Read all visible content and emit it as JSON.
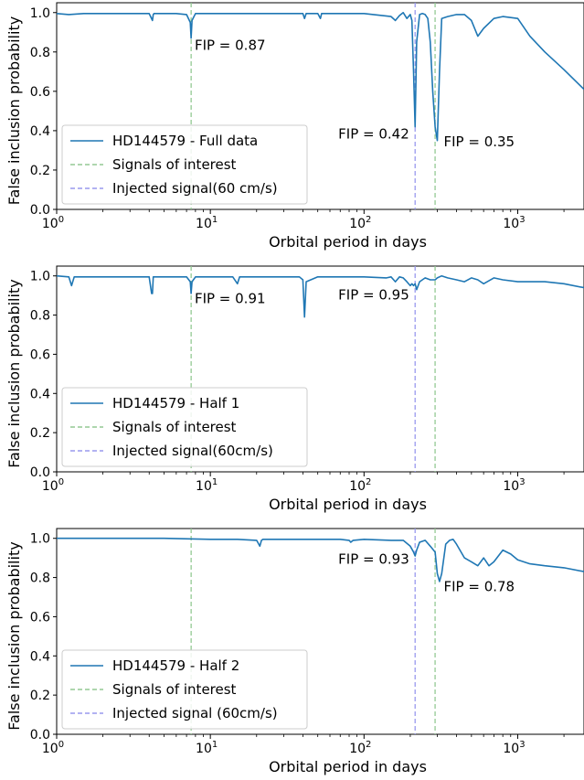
{
  "colors": {
    "series": "#1f77b4",
    "signals": "#93c993",
    "injected": "#9999ee",
    "axis": "#000000",
    "legend_border": "#cccccc"
  },
  "chart_data": [
    {
      "type": "line",
      "xscale": "log",
      "xlim": [
        1,
        2700
      ],
      "ylim": [
        0,
        1.05
      ],
      "xlabel": "Orbital period in days",
      "ylabel": "False inclusion probability",
      "xticks": [
        {
          "value": 1,
          "base": "10",
          "exp": "0"
        },
        {
          "value": 10,
          "base": "10",
          "exp": "1"
        },
        {
          "value": 100,
          "base": "10",
          "exp": "2"
        },
        {
          "value": 1000,
          "base": "10",
          "exp": "3"
        }
      ],
      "yticks": [
        "0.0",
        "0.2",
        "0.4",
        "0.6",
        "0.8",
        "1.0"
      ],
      "signals_x": [
        7.5,
        290
      ],
      "injected_x": [
        215
      ],
      "legend": [
        "HD144579 - Full data",
        "Signals of interest",
        "Injected signal(60 cm/s)"
      ],
      "legend_position": "lower-left",
      "annotations": [
        {
          "text": "FIP = 0.87",
          "x": 7.9,
          "y": 0.81
        },
        {
          "text": "FIP = 0.42",
          "x": 68,
          "y": 0.36
        },
        {
          "text": "FIP = 0.35",
          "x": 330,
          "y": 0.32
        }
      ],
      "series": [
        {
          "x": [
            1,
            1.2,
            1.5,
            2,
            3,
            4,
            4.2,
            4.25,
            4.3,
            5,
            6,
            7,
            7.4,
            7.5,
            7.6,
            8,
            10,
            15,
            20,
            30,
            40,
            41,
            42,
            50,
            52,
            53,
            60,
            80,
            100,
            150,
            160,
            170,
            180,
            190,
            200,
            205,
            210,
            215,
            220,
            230,
            240,
            250,
            260,
            270,
            280,
            290,
            300,
            310,
            320,
            350,
            400,
            450,
            500,
            550,
            600,
            700,
            800,
            1000,
            1200,
            1500,
            2000,
            2700
          ],
          "y": [
            0.995,
            0.99,
            0.995,
            0.995,
            0.995,
            0.995,
            0.96,
            0.99,
            0.995,
            0.995,
            0.995,
            0.99,
            0.95,
            0.87,
            0.96,
            0.995,
            0.995,
            0.995,
            0.995,
            0.995,
            0.995,
            0.97,
            0.995,
            0.995,
            0.97,
            0.995,
            0.995,
            0.995,
            0.995,
            0.98,
            0.96,
            0.985,
            1.0,
            0.97,
            0.99,
            0.96,
            0.7,
            0.42,
            0.85,
            0.99,
            0.995,
            0.99,
            0.97,
            0.85,
            0.6,
            0.42,
            0.35,
            0.7,
            0.97,
            0.98,
            0.99,
            0.99,
            0.96,
            0.88,
            0.92,
            0.97,
            0.98,
            0.97,
            0.88,
            0.8,
            0.71,
            0.61
          ]
        }
      ]
    },
    {
      "type": "line",
      "xscale": "log",
      "xlim": [
        1,
        2700
      ],
      "ylim": [
        0,
        1.05
      ],
      "xlabel": "Orbital period in days",
      "ylabel": "False inclusion probability",
      "xticks": [
        {
          "value": 1,
          "base": "10",
          "exp": "0"
        },
        {
          "value": 10,
          "base": "10",
          "exp": "1"
        },
        {
          "value": 100,
          "base": "10",
          "exp": "2"
        },
        {
          "value": 1000,
          "base": "10",
          "exp": "3"
        }
      ],
      "yticks": [
        "0.0",
        "0.2",
        "0.4",
        "0.6",
        "0.8",
        "1.0"
      ],
      "signals_x": [
        7.5,
        290
      ],
      "injected_x": [
        215
      ],
      "legend": [
        "HD144579 - Half 1",
        "Signals of interest",
        "Injected signal(60cm/s)"
      ],
      "legend_position": "lower-left",
      "annotations": [
        {
          "text": "FIP = 0.91",
          "x": 7.9,
          "y": 0.86
        },
        {
          "text": "FIP = 0.95",
          "x": 68,
          "y": 0.88
        }
      ],
      "series": [
        {
          "x": [
            1,
            1.2,
            1.25,
            1.3,
            1.5,
            2,
            3,
            4,
            4.15,
            4.2,
            4.25,
            5,
            6,
            7,
            7.4,
            7.5,
            7.6,
            8,
            10,
            14,
            15,
            15.5,
            20,
            30,
            38,
            40,
            41,
            42,
            50,
            80,
            100,
            140,
            150,
            160,
            170,
            180,
            190,
            200,
            205,
            210,
            215,
            220,
            230,
            250,
            270,
            290,
            300,
            320,
            350,
            400,
            450,
            500,
            550,
            600,
            700,
            800,
            1000,
            1200,
            1500,
            2000,
            2700
          ],
          "y": [
            1.0,
            0.995,
            0.95,
            0.995,
            0.995,
            0.995,
            0.995,
            0.995,
            0.91,
            0.91,
            0.995,
            0.995,
            0.995,
            0.995,
            0.97,
            0.91,
            0.97,
            0.995,
            0.995,
            0.995,
            0.96,
            0.995,
            0.995,
            0.995,
            0.995,
            0.98,
            0.79,
            0.97,
            0.995,
            0.995,
            0.995,
            0.99,
            0.995,
            0.97,
            0.995,
            0.99,
            0.97,
            0.95,
            0.96,
            0.95,
            0.96,
            0.93,
            0.97,
            0.99,
            0.98,
            0.98,
            0.99,
            1.0,
            0.99,
            0.98,
            0.97,
            0.99,
            0.98,
            0.96,
            0.99,
            0.98,
            0.97,
            0.97,
            0.97,
            0.96,
            0.94
          ]
        }
      ]
    },
    {
      "type": "line",
      "xscale": "log",
      "xlim": [
        1,
        2700
      ],
      "ylim": [
        0,
        1.05
      ],
      "xlabel": "Orbital period in days",
      "ylabel": "False inclusion probability",
      "xticks": [
        {
          "value": 1,
          "base": "10",
          "exp": "0"
        },
        {
          "value": 10,
          "base": "10",
          "exp": "1"
        },
        {
          "value": 100,
          "base": "10",
          "exp": "2"
        },
        {
          "value": 1000,
          "base": "10",
          "exp": "3"
        }
      ],
      "yticks": [
        "0.0",
        "0.2",
        "0.4",
        "0.6",
        "0.8",
        "1.0"
      ],
      "signals_x": [
        7.5,
        290
      ],
      "injected_x": [
        215
      ],
      "legend": [
        "HD144579 - Half 2",
        "Signals of interest",
        "Injected signal (60cm/s)"
      ],
      "legend_position": "lower-left",
      "annotations": [
        {
          "text": "FIP = 0.93",
          "x": 68,
          "y": 0.87
        },
        {
          "text": "FIP = 0.78",
          "x": 330,
          "y": 0.73
        }
      ],
      "series": [
        {
          "x": [
            1,
            2,
            5,
            10,
            15,
            20,
            21,
            21.5,
            22,
            25,
            30,
            50,
            70,
            80,
            82,
            85,
            100,
            150,
            180,
            200,
            210,
            215,
            220,
            230,
            250,
            270,
            290,
            300,
            310,
            320,
            340,
            360,
            380,
            400,
            450,
            500,
            550,
            600,
            650,
            700,
            800,
            900,
            1000,
            1200,
            1500,
            2000,
            2700
          ],
          "y": [
            1.0,
            1.0,
            1.0,
            0.995,
            0.995,
            0.99,
            0.96,
            0.99,
            0.995,
            0.995,
            0.995,
            0.995,
            0.995,
            0.99,
            0.98,
            0.99,
            0.995,
            0.99,
            0.99,
            0.96,
            0.93,
            0.91,
            0.94,
            0.98,
            0.99,
            0.96,
            0.93,
            0.82,
            0.78,
            0.82,
            0.97,
            0.99,
            0.995,
            0.97,
            0.9,
            0.88,
            0.86,
            0.9,
            0.86,
            0.88,
            0.94,
            0.92,
            0.89,
            0.87,
            0.86,
            0.85,
            0.83
          ]
        }
      ]
    }
  ]
}
